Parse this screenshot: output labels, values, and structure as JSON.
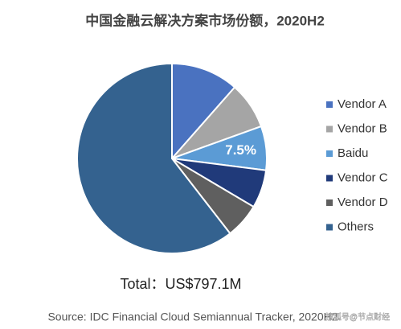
{
  "chart_data": {
    "type": "pie",
    "title": "中国金融云解决方案市场份额，2020H2",
    "categories": [
      "Vendor A",
      "Vendor B",
      "Baidu",
      "Vendor C",
      "Vendor D",
      "Others"
    ],
    "values": [
      11.5,
      8,
      7.5,
      6.5,
      6,
      60.5
    ],
    "value_labels": [
      null,
      null,
      "7.5%",
      null,
      null,
      null
    ],
    "colors": [
      "#4a72c0",
      "#a5a5a5",
      "#5b9bd5",
      "#203a7a",
      "#5f5f5f",
      "#34628f"
    ],
    "total": "Total：US$797.1M",
    "source": "Source: IDC Financial Cloud Semiannual Tracker, 2020H2",
    "watermark": "搜狐号@节点财经",
    "legend": "right"
  }
}
